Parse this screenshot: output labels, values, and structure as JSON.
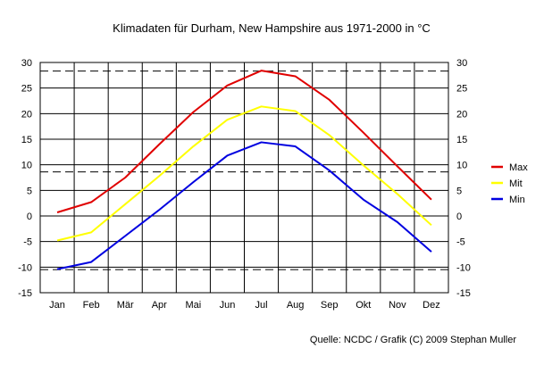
{
  "chart_data": {
    "type": "line",
    "title": "Klimadaten für Durham, New Hampshire aus 1971-2000 in °C",
    "categories": [
      "Jan",
      "Feb",
      "Mär",
      "Apr",
      "Mai",
      "Jun",
      "Jul",
      "Aug",
      "Sep",
      "Okt",
      "Nov",
      "Dez"
    ],
    "series": [
      {
        "name": "Max",
        "color": "#e00000",
        "values": [
          0.7,
          2.7,
          7.5,
          14.0,
          20.3,
          25.5,
          28.4,
          27.3,
          22.7,
          16.3,
          9.7,
          3.2
        ]
      },
      {
        "name": "Mit",
        "color": "#ffff00",
        "values": [
          -4.8,
          -3.2,
          2.3,
          7.8,
          13.6,
          18.8,
          21.4,
          20.5,
          15.8,
          9.9,
          4.3,
          -1.8
        ]
      },
      {
        "name": "Min",
        "color": "#0000e0",
        "values": [
          -10.4,
          -9.0,
          -3.9,
          1.2,
          6.6,
          11.8,
          14.4,
          13.6,
          8.9,
          3.2,
          -1.2,
          -7.0
        ]
      }
    ],
    "yticks": [
      30,
      25,
      20,
      15,
      10,
      5,
      0,
      -5,
      -10,
      -15
    ],
    "ylim": [
      -15,
      30
    ],
    "reference_lines": [
      28.4,
      8.7,
      -10.4
    ],
    "grid": true,
    "legend_position": "right",
    "xlabel": "",
    "ylabel": ""
  },
  "source": "Quelle: NCDC / Grafik (C) 2009 Stephan Muller"
}
